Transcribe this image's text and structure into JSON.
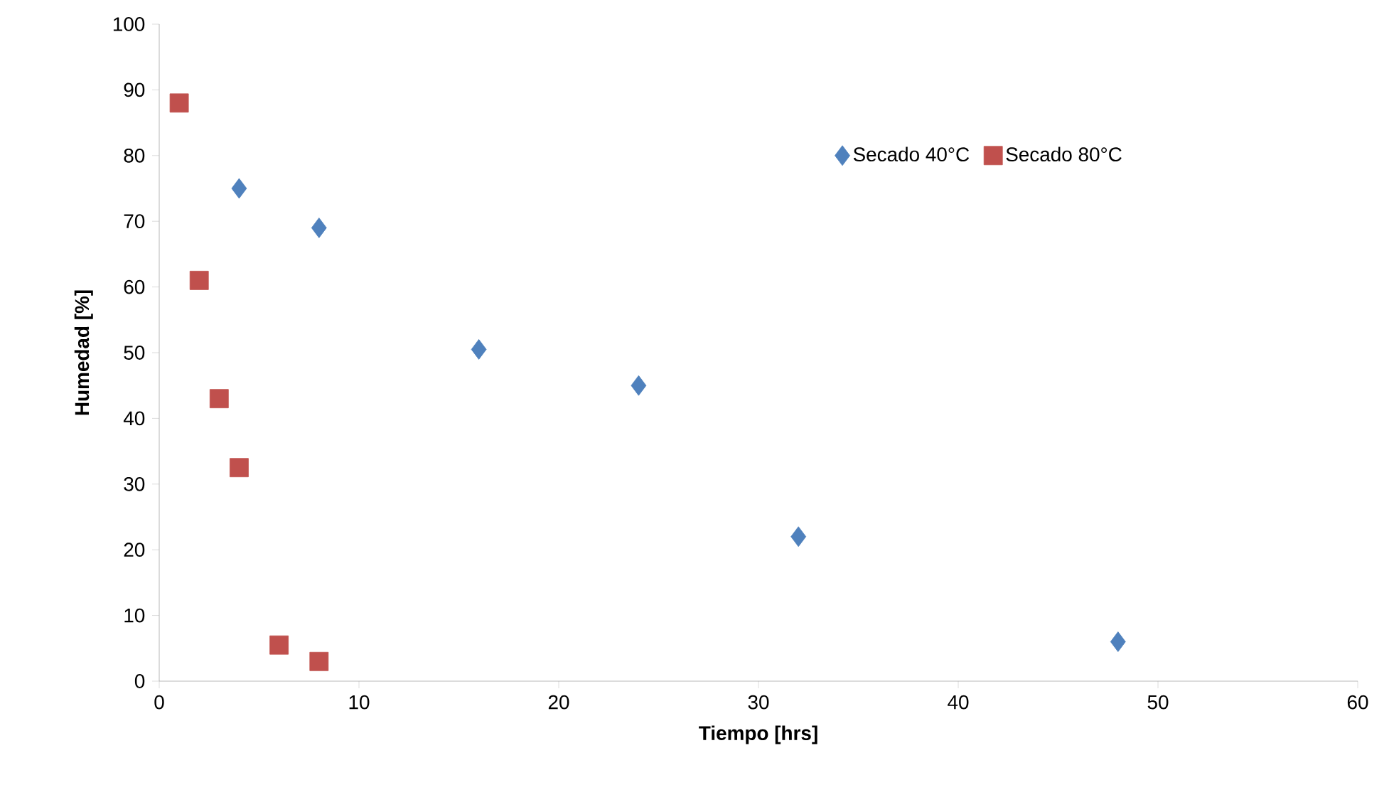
{
  "chart_data": {
    "type": "scatter",
    "xlabel": "Tiempo [hrs]",
    "ylabel": "Humedad [%]",
    "xlim": [
      0,
      60
    ],
    "xticks": [
      0,
      10,
      20,
      30,
      40,
      50,
      60
    ],
    "ylim": [
      0,
      100
    ],
    "yticks": [
      0,
      10,
      20,
      30,
      40,
      50,
      60,
      70,
      80,
      90,
      100
    ],
    "grid": false,
    "legend": "top right",
    "series": [
      {
        "name": "Secado 40°C",
        "color": "#4f81bd",
        "marker": "diamond",
        "x": [
          4,
          8,
          16,
          24,
          32,
          48
        ],
        "values": [
          75,
          69,
          50.5,
          45,
          22,
          6
        ]
      },
      {
        "name": "Secado 80°C",
        "color": "#c0504d",
        "marker": "square",
        "x": [
          1,
          2,
          3,
          4,
          6,
          8
        ],
        "values": [
          88,
          61,
          43,
          32.5,
          5.5,
          3
        ]
      }
    ]
  }
}
